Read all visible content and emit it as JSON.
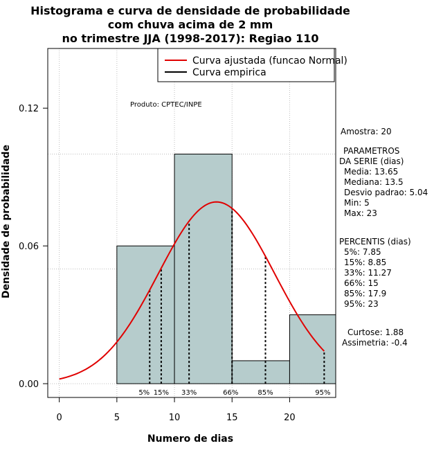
{
  "chart_data": {
    "type": "bar",
    "title_lines": [
      "Histograma e curva de densidade de probabilidade",
      "com chuva acima de 2 mm",
      "no trimestre JJA (1998-2017): Regiao 110"
    ],
    "xlabel": "Numero de dias",
    "ylabel": "Densidade de probabilidade",
    "xlim": [
      -1,
      24
    ],
    "ylim": [
      -0.006,
      0.146
    ],
    "x_ticks": [
      0,
      5,
      10,
      15,
      20
    ],
    "x_tick_labels": [
      "0",
      "5",
      "10",
      "15",
      "20"
    ],
    "y_ticks": [
      0.0,
      0.06,
      0.12
    ],
    "y_tick_labels": [
      "0.00",
      "0.06",
      "0.12"
    ],
    "grid_x": [
      0,
      5,
      10,
      15,
      20
    ],
    "grid_y": [
      0.0,
      0.05,
      0.1
    ],
    "bins": [
      {
        "x0": 5,
        "x1": 10,
        "density": 0.06
      },
      {
        "x0": 10,
        "x1": 15,
        "density": 0.1
      },
      {
        "x0": 15,
        "x1": 20,
        "density": 0.01
      },
      {
        "x0": 20,
        "x1": 24,
        "density": 0.03
      }
    ],
    "bar_color": "#b6cccc",
    "normal_curve": {
      "mean": 13.65,
      "sd": 5.04,
      "x_from": 0,
      "x_to": 23,
      "color": "#e00000"
    },
    "percentile_lines": [
      {
        "x": 7.85,
        "label": "5%"
      },
      {
        "x": 8.85,
        "label": "15%"
      },
      {
        "x": 11.27,
        "label": "33%"
      },
      {
        "x": 15,
        "label": "66%"
      },
      {
        "x": 17.9,
        "label": "85%"
      },
      {
        "x": 23,
        "label": "95%"
      }
    ],
    "legend": {
      "position": "top-right",
      "entries": [
        {
          "label": "Curva ajustada (funcao Normal)",
          "color": "#e00000"
        },
        {
          "label": "Curva empirica",
          "color": "#000000"
        }
      ]
    },
    "annotation": "Produto: CPTEC/INPE"
  },
  "stats_panel": {
    "amostra": "Amostra: 20",
    "param_header_1": "PARAMETROS",
    "param_header_2": "DA SERIE (dias)",
    "params": [
      "Media: 13.65",
      "Mediana: 13.5",
      "Desvio padrao: 5.04",
      "Min: 5",
      "Max: 23"
    ],
    "perc_header": "PERCENTIS (dias)",
    "percentis": [
      "5%: 7.85",
      "15%: 8.85",
      "33%: 11.27",
      "66%: 15",
      "85%: 17.9",
      "95%: 23"
    ],
    "curtose": "Curtose: 1.88",
    "assimetria": "Assimetria: -0.4"
  }
}
